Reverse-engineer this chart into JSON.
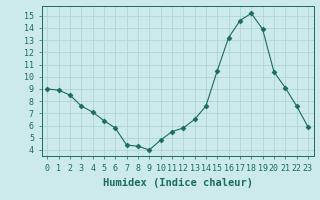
{
  "x": [
    0,
    1,
    2,
    3,
    4,
    5,
    6,
    7,
    8,
    9,
    10,
    11,
    12,
    13,
    14,
    15,
    16,
    17,
    18,
    19,
    20,
    21,
    22,
    23
  ],
  "y": [
    9.0,
    8.9,
    8.5,
    7.6,
    7.1,
    6.4,
    5.8,
    4.4,
    4.3,
    4.0,
    4.8,
    5.5,
    5.8,
    6.5,
    7.6,
    10.5,
    13.2,
    14.6,
    15.2,
    13.9,
    10.4,
    9.1,
    7.6,
    5.9
  ],
  "line_color": "#1a6b60",
  "marker": "D",
  "marker_size": 2.5,
  "bg_color": "#cdeaea",
  "grid_color": "#b0d4d4",
  "xlabel": "Humidex (Indice chaleur)",
  "ylim": [
    3.5,
    15.8
  ],
  "xlim": [
    -0.5,
    23.5
  ],
  "yticks": [
    4,
    5,
    6,
    7,
    8,
    9,
    10,
    11,
    12,
    13,
    14,
    15
  ],
  "xticks": [
    0,
    1,
    2,
    3,
    4,
    5,
    6,
    7,
    8,
    9,
    10,
    11,
    12,
    13,
    14,
    15,
    16,
    17,
    18,
    19,
    20,
    21,
    22,
    23
  ],
  "tick_label_fontsize": 6,
  "xlabel_fontsize": 7.5,
  "xlabel_fontweight": "bold"
}
